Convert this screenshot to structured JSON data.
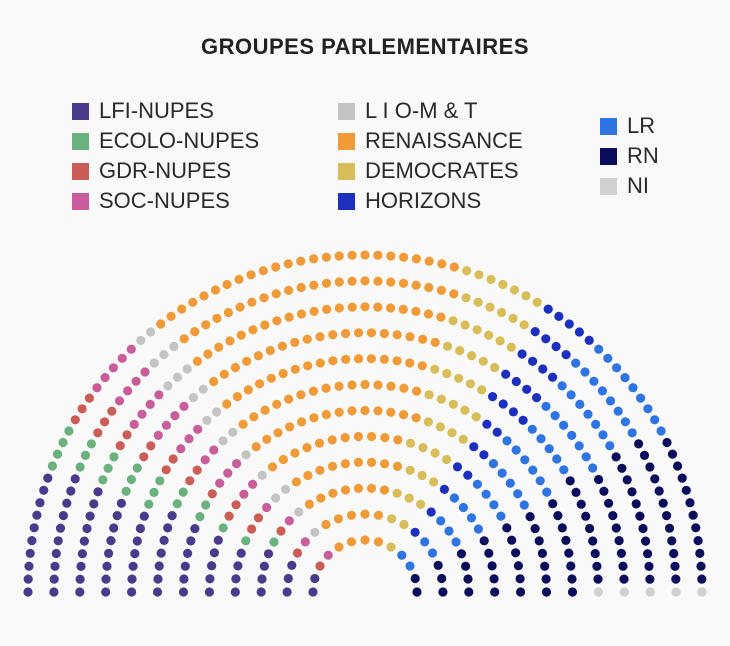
{
  "chart_data": {
    "type": "parliament",
    "title": "GROUPES PARLEMENTAIRES",
    "legend": [
      {
        "name": "LFI-NUPES",
        "color": "#4a3a8c"
      },
      {
        "name": "ECOLO-NUPES",
        "color": "#6bb17e"
      },
      {
        "name": "GDR-NUPES",
        "color": "#cc5d56"
      },
      {
        "name": "SOC-NUPES",
        "color": "#c95d9c"
      },
      {
        "name": "L I O-M & T",
        "color": "#c4c4c4"
      },
      {
        "name": "RENAISSANCE",
        "color": "#f09a38"
      },
      {
        "name": "DEMOCRATES",
        "color": "#d8bd58"
      },
      {
        "name": "HORIZONS",
        "color": "#1d2fbe"
      },
      {
        "name": "LR",
        "color": "#2f74e3"
      },
      {
        "name": "RN",
        "color": "#0c0c5c"
      },
      {
        "name": "NI",
        "color": "#d0d0d0"
      }
    ],
    "seat_order": [
      "LFI-NUPES",
      "ECOLO-NUPES",
      "GDR-NUPES",
      "SOC-NUPES",
      "L I O-M & T",
      "RENAISSANCE",
      "DEMOCRATES",
      "HORIZONS",
      "LR",
      "RN",
      "NI"
    ],
    "seats": [
      75,
      23,
      22,
      31,
      20,
      170,
      51,
      30,
      62,
      88,
      5
    ],
    "rows": 12
  }
}
